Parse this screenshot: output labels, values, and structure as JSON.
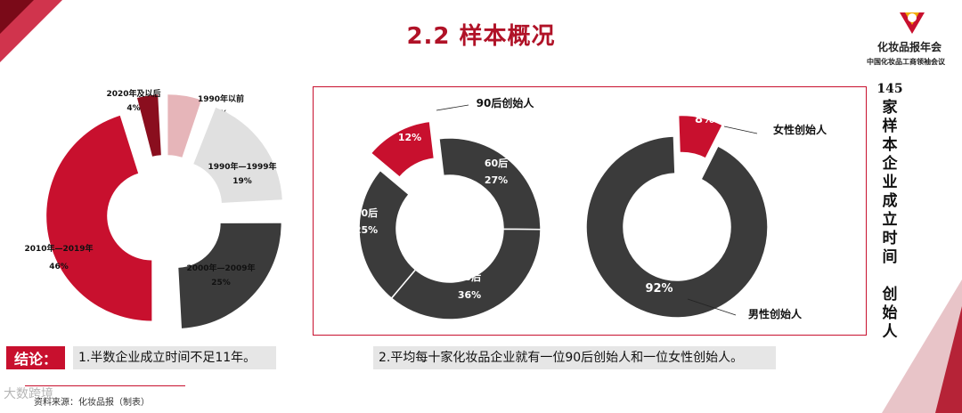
{
  "header": {
    "title": "2.2 样本概况",
    "brand_name": "化妆品报年会",
    "brand_sub": "中国化妆品工商领袖会议"
  },
  "side_caption": {
    "number": "145",
    "text": "家样本企业成立时间 创始人"
  },
  "chart_data": [
    {
      "type": "pie",
      "donut": true,
      "categories": [
        "2020年及以后",
        "1990年以前",
        "1990年—1999年",
        "2000年—2009年",
        "2010年—2019年"
      ],
      "values": [
        4,
        6,
        19,
        25,
        46
      ],
      "labels": [
        "4%",
        "6%",
        "19%",
        "25%",
        "46%"
      ],
      "colors": [
        "#8a0e1e",
        "#e6b5b9",
        "#e0e0e0",
        "#3b3b3b",
        "#c8102e"
      ]
    },
    {
      "type": "pie",
      "donut": true,
      "categories": [
        "90后",
        "60后",
        "70后",
        "80后"
      ],
      "values": [
        12,
        27,
        36,
        25
      ],
      "labels": [
        "12%",
        "27%",
        "36%",
        "25%"
      ],
      "colors": [
        "#c8102e",
        "#3b3b3b",
        "#3b3b3b",
        "#3b3b3b"
      ],
      "legend_label": "90后创始人"
    },
    {
      "type": "pie",
      "donut": true,
      "categories": [
        "女性创始人",
        "男性创始人"
      ],
      "values": [
        8,
        92
      ],
      "labels": [
        "8%",
        "92%"
      ],
      "colors": [
        "#c8102e",
        "#3b3b3b"
      ]
    }
  ],
  "conclusion": {
    "tag": "结论：",
    "point1": "1.半数企业成立时间不足11年。",
    "point2": "2.平均每十家化妆品企业就有一位90后创始人和一位女性创始人。"
  },
  "footer": {
    "source": "资料来源：化妆品报（制表）",
    "watermark": "大数跨境"
  }
}
